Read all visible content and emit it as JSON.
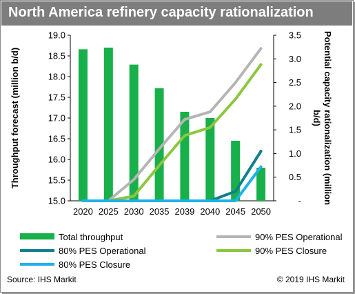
{
  "title": "North America refinery capacity rationalization",
  "source": "Source: IHS Markit",
  "copyright": "© 2019 IHS Markit",
  "colors": {
    "title_bar": "#7d7d7d",
    "Total throughput": "#17b04a",
    "90% PES Operational": "#b5b5b5",
    "80% PES Operational": "#127f8e",
    "90% PES Closure": "#8cc63f",
    "80% PES Closure": "#1eb2e8"
  },
  "chart_data": {
    "type": "bar",
    "categories": [
      "2020",
      "2025",
      "2030",
      "2035",
      "2039",
      "2040",
      "2045",
      "2050"
    ],
    "left_axis": {
      "label": "Throughput forecast (million b/d)",
      "ylim": [
        15.0,
        19.0
      ],
      "ticks": [
        "15.0",
        "15.5",
        "16.0",
        "16.5",
        "17.0",
        "17.5",
        "18.0",
        "18.5",
        "19.0"
      ]
    },
    "right_axis": {
      "label": "Potential capacity rationalization (million b/d)",
      "ylim": [
        0,
        3.5
      ],
      "ticks": [
        "-",
        "0.5",
        "1.0",
        "1.5",
        "2.0",
        "2.5",
        "3.0",
        "3.5"
      ]
    },
    "series": [
      {
        "name": "Total throughput",
        "type": "bar",
        "axis": "left",
        "values": [
          18.66,
          18.7,
          18.29,
          17.72,
          17.15,
          17.0,
          16.45,
          15.8
        ]
      },
      {
        "name": "90% PES Operational",
        "type": "line",
        "axis": "right",
        "values": [
          0,
          0,
          0.45,
          1.1,
          1.72,
          1.88,
          2.5,
          3.22
        ]
      },
      {
        "name": "80% PES Operational",
        "type": "line",
        "axis": "right",
        "values": [
          0,
          0,
          0,
          0,
          0,
          0,
          0.2,
          1.05
        ]
      },
      {
        "name": "90% PES Closure",
        "type": "line",
        "axis": "right",
        "values": [
          0,
          0,
          0.1,
          0.75,
          1.38,
          1.55,
          2.15,
          2.88
        ]
      },
      {
        "name": "80% PES Closure",
        "type": "line",
        "axis": "right",
        "values": [
          0,
          0,
          0,
          0,
          0,
          0,
          0,
          0.72
        ]
      }
    ],
    "legend": [
      "Total throughput",
      "90% PES Operational",
      "80% PES Operational",
      "90% PES Closure",
      "80% PES Closure"
    ],
    "legend_position": "bottom",
    "grid": false
  }
}
